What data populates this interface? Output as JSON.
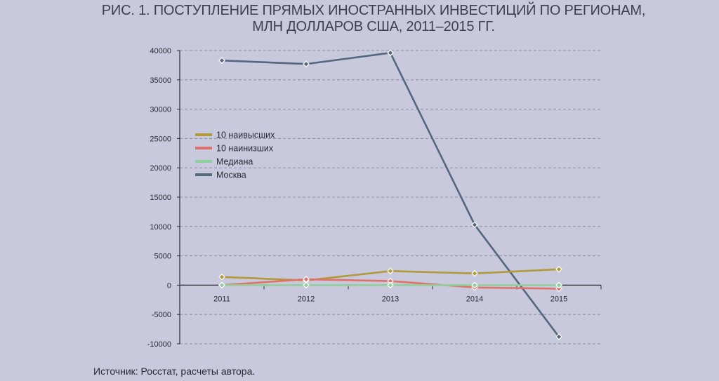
{
  "chart_data": {
    "type": "line",
    "title": [
      "РИС. 1. ПОСТУПЛЕНИЕ ПРЯМЫХ ИНОСТРАННЫХ ИНВЕСТИЦИЙ ПО РЕГИОНАМ,",
      "МЛН ДОЛЛАРОВ США, 2011–2015 ГГ."
    ],
    "x": [
      "2011",
      "2012",
      "2013",
      "2014",
      "2015"
    ],
    "ylim": [
      -10000,
      40000
    ],
    "yticks": [
      "40000",
      "35000",
      "30000",
      "25000",
      "20000",
      "15000",
      "10000",
      "5000",
      "0",
      "-5000",
      "-10000"
    ],
    "grid": true,
    "legend_position": "left",
    "series": [
      {
        "name": "10 наивысших",
        "color": "#b09a3a",
        "values": [
          1400,
          800,
          2400,
          2000,
          2700
        ]
      },
      {
        "name": "10 наинизших",
        "color": "#e07068",
        "values": [
          0,
          1000,
          700,
          -400,
          -600
        ]
      },
      {
        "name": "Медиана",
        "color": "#8fcf9a",
        "values": [
          0,
          0,
          0,
          0,
          0
        ]
      },
      {
        "name": "Москва",
        "color": "#55677e",
        "values": [
          38300,
          37700,
          39600,
          10300,
          -8800
        ]
      }
    ]
  },
  "source_text": "Источник: Росстат, расчеты автора."
}
